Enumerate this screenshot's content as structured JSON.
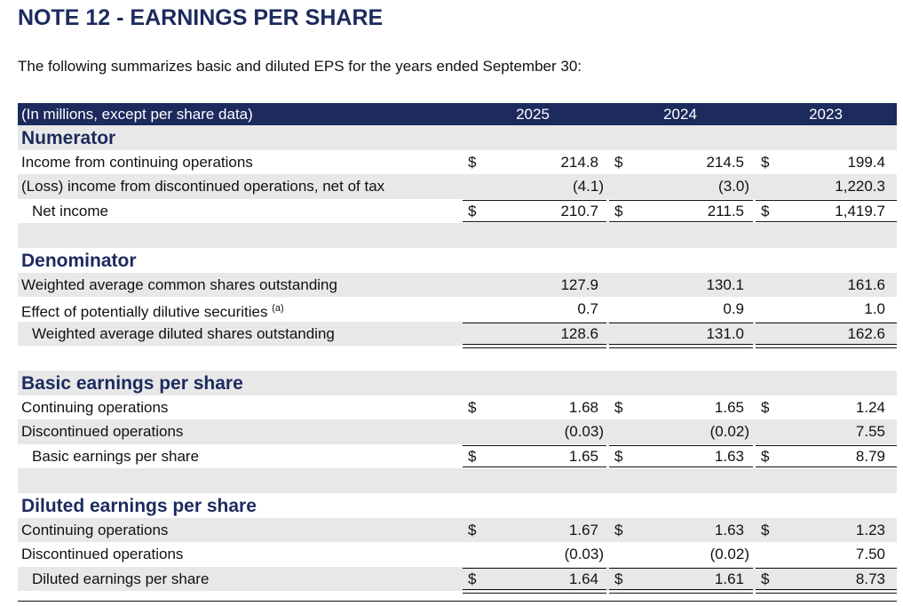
{
  "header": {
    "title": "NOTE 12 - EARNINGS PER SHARE",
    "subtitle": "The following summarizes basic and diluted EPS for the years ended September 30:"
  },
  "table": {
    "columns": [
      "(In millions, except per share data)",
      "2025",
      "2024",
      "2023"
    ],
    "sections": [
      {
        "title": "Numerator",
        "rows": [
          {
            "label": "Income from continuing operations",
            "cells": [
              {
                "currency": "$",
                "value": "214.8"
              },
              {
                "currency": "$",
                "value": "214.5"
              },
              {
                "currency": "$",
                "value": "199.4"
              }
            ]
          },
          {
            "label": "(Loss) income from discontinued operations, net of tax",
            "cells": [
              {
                "value": "(4.1)"
              },
              {
                "value": "(3.0)"
              },
              {
                "value": "1,220.3"
              }
            ]
          },
          {
            "label": "Net income",
            "cells": [
              {
                "currency": "$",
                "value": "210.7"
              },
              {
                "currency": "$",
                "value": "211.5"
              },
              {
                "currency": "$",
                "value": "1,419.7"
              }
            ]
          }
        ]
      },
      {
        "title": "Denominator",
        "rows": [
          {
            "label": "Weighted average common shares outstanding",
            "cells": [
              {
                "value": "127.9"
              },
              {
                "value": "130.1"
              },
              {
                "value": "161.6"
              }
            ]
          },
          {
            "label": "Effect of potentially dilutive securities",
            "note": "(a)",
            "cells": [
              {
                "value": "0.7"
              },
              {
                "value": "0.9"
              },
              {
                "value": "1.0"
              }
            ]
          },
          {
            "label": "Weighted average diluted shares outstanding",
            "cells": [
              {
                "value": "128.6"
              },
              {
                "value": "131.0"
              },
              {
                "value": "162.6"
              }
            ]
          }
        ]
      },
      {
        "title": "Basic earnings per share",
        "rows": [
          {
            "label": "Continuing operations",
            "cells": [
              {
                "currency": "$",
                "value": "1.68"
              },
              {
                "currency": "$",
                "value": "1.65"
              },
              {
                "currency": "$",
                "value": "1.24"
              }
            ]
          },
          {
            "label": "Discontinued operations",
            "cells": [
              {
                "value": "(0.03)"
              },
              {
                "value": "(0.02)"
              },
              {
                "value": "7.55"
              }
            ]
          },
          {
            "label": "Basic earnings per share",
            "cells": [
              {
                "currency": "$",
                "value": "1.65"
              },
              {
                "currency": "$",
                "value": "1.63"
              },
              {
                "currency": "$",
                "value": "8.79"
              }
            ]
          }
        ]
      },
      {
        "title": "Diluted earnings per share",
        "rows": [
          {
            "label": "Continuing operations",
            "cells": [
              {
                "currency": "$",
                "value": "1.67"
              },
              {
                "currency": "$",
                "value": "1.63"
              },
              {
                "currency": "$",
                "value": "1.23"
              }
            ]
          },
          {
            "label": "Discontinued operations",
            "cells": [
              {
                "value": "(0.03)"
              },
              {
                "value": "(0.02)"
              },
              {
                "value": "7.50"
              }
            ]
          },
          {
            "label": "Diluted earnings per share",
            "cells": [
              {
                "currency": "$",
                "value": "1.64"
              },
              {
                "currency": "$",
                "value": "1.61"
              },
              {
                "currency": "$",
                "value": "8.73"
              }
            ]
          }
        ]
      }
    ]
  }
}
